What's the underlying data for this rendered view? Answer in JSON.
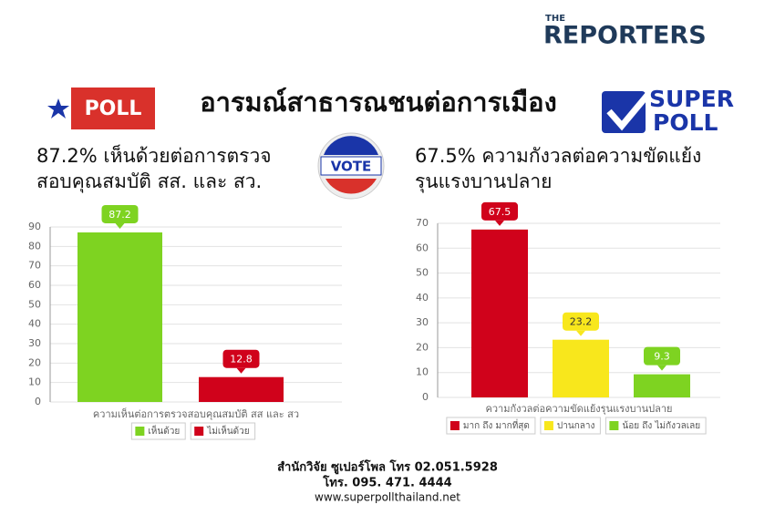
{
  "header": {
    "logo_small": "THE",
    "logo": "REPORTERS",
    "badge": "POLL",
    "title": "อารมณ์สาธารณชนต่อการเมือง",
    "brand_top": "SUPER",
    "brand_bottom": "POLL",
    "vote": "VOTE"
  },
  "chart_data": [
    {
      "type": "bar",
      "title": [
        "87.2% เห็นด้วยต่อการตรวจ",
        "สอบคุณสมบัติ สส. และ สว."
      ],
      "categories": [
        "ความเห็นต่อการตรวจสอบคุณสมบัติ สส และ สว"
      ],
      "series": [
        {
          "name": "เห็นด้วย",
          "color": "#7ed321",
          "values": [
            87.2
          ]
        },
        {
          "name": "ไม่เห็นด้วย",
          "color": "#d0021b",
          "values": [
            12.8
          ]
        }
      ],
      "ylim": [
        0,
        90
      ],
      "yticks": [
        0,
        10,
        20,
        30,
        40,
        50,
        60,
        70,
        80,
        90
      ],
      "grid": true
    },
    {
      "type": "bar",
      "title": [
        "67.5% ความกังวลต่อความขัดแย้ง",
        "รุนแรงบานปลาย"
      ],
      "categories": [
        "ความกังวลต่อความขัดแย้งรุนแรงบานปลาย"
      ],
      "series": [
        {
          "name": "มาก ถึง มากที่สุด",
          "color": "#d0021b",
          "values": [
            67.5
          ]
        },
        {
          "name": "ปานกลาง",
          "color": "#f8e71c",
          "values": [
            23.2
          ]
        },
        {
          "name": "น้อย ถึง ไม่กังวลเลย",
          "color": "#7ed321",
          "values": [
            9.3
          ]
        }
      ],
      "ylim": [
        0,
        70
      ],
      "yticks": [
        0,
        10,
        20,
        30,
        40,
        50,
        60,
        70
      ],
      "grid": true
    }
  ],
  "footer": [
    "สำนักวิจัย ซูเปอร์โพล โทร 02.051.5928",
    "โทร. 095. 471. 4444",
    "www.superpollthailand.net"
  ]
}
